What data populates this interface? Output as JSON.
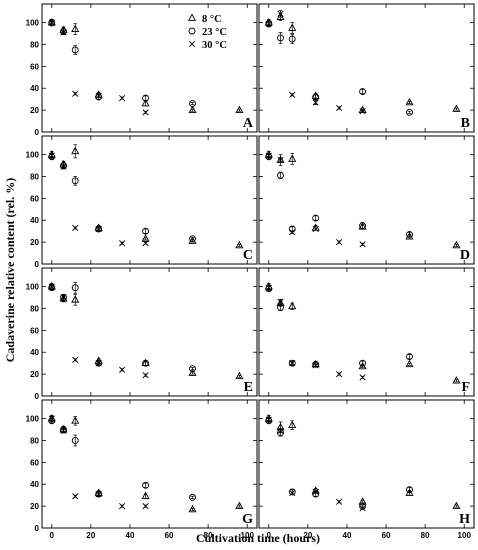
{
  "chart_data": {
    "type": "scatter",
    "ylabel": "Cadaverine relative content (rel. %)",
    "xlabel": "Cultivation time (hours)",
    "x_ticks": [
      0,
      20,
      40,
      60,
      80,
      100
    ],
    "y_ticks": [
      0,
      20,
      40,
      60,
      80,
      100
    ],
    "xlim": [
      -5,
      105
    ],
    "ylim": [
      0,
      117
    ],
    "grid": false,
    "legend": {
      "placement": "top-right of panel A",
      "entries": [
        {
          "label": "8 °C",
          "marker": "triangle"
        },
        {
          "label": "23 °C",
          "marker": "circle"
        },
        {
          "label": "30 °C",
          "marker": "cross"
        }
      ]
    },
    "panels": [
      {
        "label": "A",
        "series": [
          {
            "marker": "triangle",
            "points": [
              [
                0,
                100,
                3
              ],
              [
                6,
                93,
                3
              ],
              [
                12,
                94,
                5
              ],
              [
                24,
                34,
                2
              ],
              [
                48,
                26,
                2
              ],
              [
                72,
                20,
                1
              ],
              [
                96,
                20,
                1
              ]
            ]
          },
          {
            "marker": "circle",
            "points": [
              [
                0,
                100,
                2
              ],
              [
                6,
                92,
                3
              ],
              [
                12,
                75,
                4
              ],
              [
                24,
                32,
                2
              ],
              [
                48,
                31,
                2
              ],
              [
                72,
                26,
                1
              ]
            ]
          },
          {
            "marker": "cross",
            "points": [
              [
                0,
                100,
                2
              ],
              [
                6,
                91,
                2
              ],
              [
                12,
                35,
                1
              ],
              [
                24,
                33,
                1
              ],
              [
                36,
                31,
                1
              ],
              [
                48,
                18,
                1
              ]
            ]
          }
        ]
      },
      {
        "label": "B",
        "series": [
          {
            "marker": "triangle",
            "points": [
              [
                0,
                100,
                3
              ],
              [
                6,
                105,
                3
              ],
              [
                12,
                95,
                5
              ],
              [
                24,
                33,
                2
              ],
              [
                48,
                20,
                1
              ],
              [
                72,
                27,
                1
              ],
              [
                96,
                21,
                1
              ]
            ]
          },
          {
            "marker": "circle",
            "points": [
              [
                0,
                99,
                3
              ],
              [
                6,
                86,
                5
              ],
              [
                12,
                85,
                4
              ],
              [
                24,
                32,
                2
              ],
              [
                48,
                37,
                2
              ],
              [
                72,
                18,
                1
              ]
            ]
          },
          {
            "marker": "cross",
            "points": [
              [
                0,
                99,
                2
              ],
              [
                6,
                108,
                3
              ],
              [
                12,
                34,
                1
              ],
              [
                24,
                27,
                2
              ],
              [
                36,
                22,
                1
              ],
              [
                48,
                19,
                1
              ]
            ]
          }
        ]
      },
      {
        "label": "C",
        "series": [
          {
            "marker": "triangle",
            "points": [
              [
                0,
                100,
                3
              ],
              [
                6,
                91,
                3
              ],
              [
                12,
                103,
                6
              ],
              [
                24,
                33,
                2
              ],
              [
                48,
                23,
                1
              ],
              [
                72,
                21,
                1
              ],
              [
                96,
                17,
                1
              ]
            ]
          },
          {
            "marker": "circle",
            "points": [
              [
                0,
                98,
                2
              ],
              [
                6,
                90,
                3
              ],
              [
                12,
                76,
                4
              ],
              [
                24,
                32,
                2
              ],
              [
                48,
                30,
                2
              ],
              [
                72,
                23,
                1
              ]
            ]
          },
          {
            "marker": "cross",
            "points": [
              [
                0,
                99,
                2
              ],
              [
                6,
                89,
                2
              ],
              [
                12,
                33,
                1
              ],
              [
                24,
                32,
                1
              ],
              [
                36,
                19,
                1
              ],
              [
                48,
                19,
                1
              ]
            ]
          }
        ]
      },
      {
        "label": "D",
        "series": [
          {
            "marker": "triangle",
            "points": [
              [
                0,
                100,
                3
              ],
              [
                6,
                95,
                5
              ],
              [
                12,
                96,
                5
              ],
              [
                24,
                33,
                2
              ],
              [
                48,
                34,
                2
              ],
              [
                72,
                25,
                2
              ],
              [
                96,
                17,
                1
              ]
            ]
          },
          {
            "marker": "circle",
            "points": [
              [
                0,
                98,
                2
              ],
              [
                6,
                81,
                3
              ],
              [
                12,
                32,
                2
              ],
              [
                24,
                42,
                2
              ],
              [
                48,
                35,
                3
              ],
              [
                72,
                27,
                2
              ]
            ]
          },
          {
            "marker": "cross",
            "points": [
              [
                0,
                99,
                2
              ],
              [
                6,
                95,
                2
              ],
              [
                12,
                29,
                1
              ],
              [
                24,
                32,
                1
              ],
              [
                36,
                20,
                1
              ],
              [
                48,
                18,
                1
              ]
            ]
          }
        ]
      },
      {
        "label": "E",
        "series": [
          {
            "marker": "triangle",
            "points": [
              [
                0,
                100,
                3
              ],
              [
                6,
                89,
                3
              ],
              [
                12,
                88,
                5
              ],
              [
                24,
                32,
                2
              ],
              [
                48,
                30,
                2
              ],
              [
                72,
                21,
                1
              ],
              [
                96,
                18,
                1
              ]
            ]
          },
          {
            "marker": "circle",
            "points": [
              [
                0,
                99,
                2
              ],
              [
                6,
                90,
                3
              ],
              [
                12,
                99,
                5
              ],
              [
                24,
                30,
                2
              ],
              [
                48,
                30,
                2
              ],
              [
                72,
                25,
                1
              ]
            ]
          },
          {
            "marker": "cross",
            "points": [
              [
                0,
                100,
                2
              ],
              [
                6,
                90,
                2
              ],
              [
                12,
                33,
                1
              ],
              [
                24,
                30,
                1
              ],
              [
                36,
                24,
                1
              ],
              [
                48,
                19,
                1
              ]
            ]
          }
        ]
      },
      {
        "label": "F",
        "series": [
          {
            "marker": "triangle",
            "points": [
              [
                0,
                100,
                3
              ],
              [
                6,
                85,
                3
              ],
              [
                12,
                82,
                3
              ],
              [
                24,
                29,
                2
              ],
              [
                48,
                27,
                1
              ],
              [
                72,
                29,
                1
              ],
              [
                96,
                14,
                1
              ]
            ]
          },
          {
            "marker": "circle",
            "points": [
              [
                0,
                98,
                2
              ],
              [
                6,
                81,
                3
              ],
              [
                12,
                30,
                2
              ],
              [
                24,
                29,
                2
              ],
              [
                48,
                30,
                2
              ],
              [
                72,
                36,
                2
              ]
            ]
          },
          {
            "marker": "cross",
            "points": [
              [
                0,
                99,
                2
              ],
              [
                6,
                86,
                2
              ],
              [
                12,
                30,
                1
              ],
              [
                24,
                28,
                1
              ],
              [
                36,
                20,
                1
              ],
              [
                48,
                17,
                1
              ]
            ]
          }
        ]
      },
      {
        "label": "G",
        "series": [
          {
            "marker": "triangle",
            "points": [
              [
                0,
                100,
                3
              ],
              [
                6,
                90,
                3
              ],
              [
                12,
                98,
                4
              ],
              [
                24,
                32,
                2
              ],
              [
                48,
                29,
                2
              ],
              [
                72,
                17,
                1
              ],
              [
                96,
                20,
                1
              ]
            ]
          },
          {
            "marker": "circle",
            "points": [
              [
                0,
                98,
                2
              ],
              [
                6,
                90,
                3
              ],
              [
                12,
                80,
                5
              ],
              [
                24,
                31,
                2
              ],
              [
                48,
                39,
                2
              ],
              [
                72,
                28,
                1
              ]
            ]
          },
          {
            "marker": "cross",
            "points": [
              [
                0,
                100,
                2
              ],
              [
                6,
                89,
                2
              ],
              [
                12,
                29,
                1
              ],
              [
                24,
                31,
                1
              ],
              [
                36,
                20,
                1
              ],
              [
                48,
                20,
                1
              ]
            ]
          }
        ]
      },
      {
        "label": "H",
        "series": [
          {
            "marker": "triangle",
            "points": [
              [
                0,
                100,
                3
              ],
              [
                6,
                92,
                5
              ],
              [
                12,
                94,
                4
              ],
              [
                24,
                34,
                2
              ],
              [
                48,
                24,
                1
              ],
              [
                72,
                32,
                2
              ],
              [
                96,
                20,
                1
              ]
            ]
          },
          {
            "marker": "circle",
            "points": [
              [
                0,
                98,
                2
              ],
              [
                6,
                87,
                3
              ],
              [
                12,
                33,
                2
              ],
              [
                24,
                31,
                2
              ],
              [
                48,
                20,
                1
              ],
              [
                72,
                35,
                2
              ]
            ]
          },
          {
            "marker": "cross",
            "points": [
              [
                0,
                99,
                2
              ],
              [
                6,
                89,
                2
              ],
              [
                12,
                32,
                1
              ],
              [
                24,
                33,
                1
              ],
              [
                36,
                24,
                1
              ],
              [
                48,
                18,
                1
              ]
            ]
          }
        ]
      }
    ]
  }
}
